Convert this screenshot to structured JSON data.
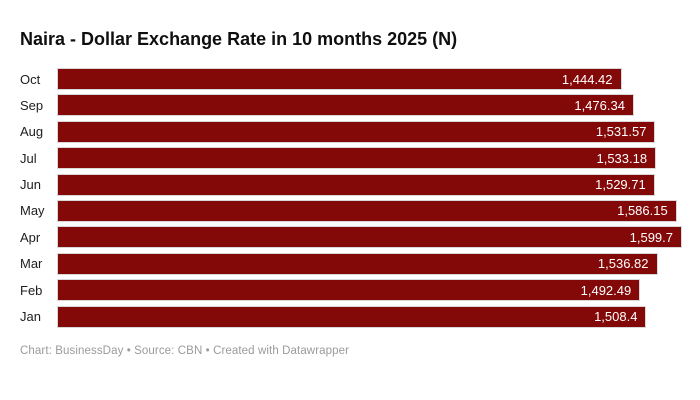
{
  "title": "Naira - Dollar Exchange Rate in 10 months 2025 (N)",
  "footer": "Chart: BusinessDay • Source: CBN • Created with Datawrapper",
  "colors": {
    "bar": "#830808",
    "value_label": "#ffffff",
    "category_label": "#202020",
    "title": "#0f0f0f",
    "footer": "#9b9b9b",
    "background": "#ffffff"
  },
  "chart_data": {
    "type": "bar",
    "orientation": "horizontal",
    "title": "Naira - Dollar Exchange Rate in 10 months 2025 (N)",
    "xlabel": "",
    "ylabel": "",
    "xlim": [
      0,
      1599.7
    ],
    "grid": false,
    "legend": false,
    "categories": [
      "Oct",
      "Sep",
      "Aug",
      "Jul",
      "Jun",
      "May",
      "Apr",
      "Mar",
      "Feb",
      "Jan"
    ],
    "values": [
      1444.42,
      1476.34,
      1531.57,
      1533.18,
      1529.71,
      1586.15,
      1599.7,
      1536.82,
      1492.49,
      1508.4
    ],
    "value_labels": [
      "1,444.42",
      "1,476.34",
      "1,531.57",
      "1,533.18",
      "1,529.71",
      "1,586.15",
      "1,599.7",
      "1,536.82",
      "1,492.49",
      "1,508.4"
    ],
    "max_value": 1599.7,
    "value_label_position": "inside-end",
    "source_note": "Chart: BusinessDay • Source: CBN • Created with Datawrapper"
  }
}
